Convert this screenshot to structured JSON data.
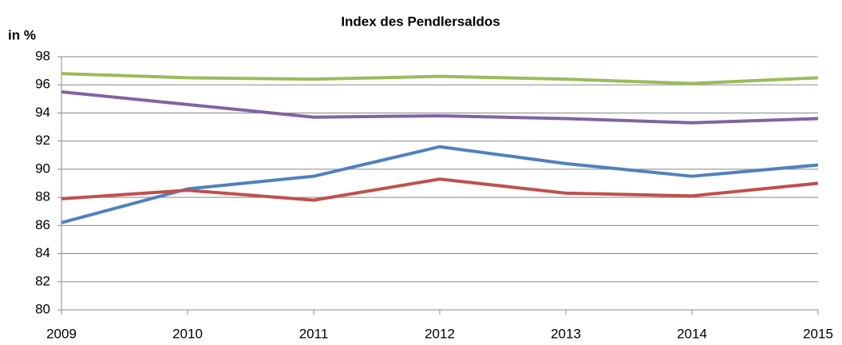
{
  "chart_data": {
    "type": "line",
    "title": "Index des Pendlersaldos",
    "y_label": "in %",
    "x": [
      2009,
      2010,
      2011,
      2012,
      2013,
      2014,
      2015
    ],
    "xlim": [
      2009,
      2015
    ],
    "xticks": [
      2009,
      2010,
      2011,
      2012,
      2013,
      2014,
      2015
    ],
    "ylim": [
      80,
      98
    ],
    "yticks": [
      80,
      82,
      84,
      86,
      88,
      90,
      92,
      94,
      96,
      98
    ],
    "grid": true,
    "series": [
      {
        "color": "#4f81bd",
        "values": [
          86.2,
          88.6,
          89.5,
          91.6,
          90.4,
          89.5,
          90.3
        ]
      },
      {
        "color": "#c0504d",
        "values": [
          87.9,
          88.5,
          87.8,
          89.3,
          88.3,
          88.1,
          89.0
        ]
      },
      {
        "color": "#9bbb59",
        "values": [
          96.8,
          96.5,
          96.4,
          96.6,
          96.4,
          96.1,
          96.5
        ]
      },
      {
        "color": "#8064a2",
        "values": [
          95.5,
          94.6,
          93.7,
          93.8,
          93.6,
          93.3,
          93.6
        ]
      }
    ]
  }
}
